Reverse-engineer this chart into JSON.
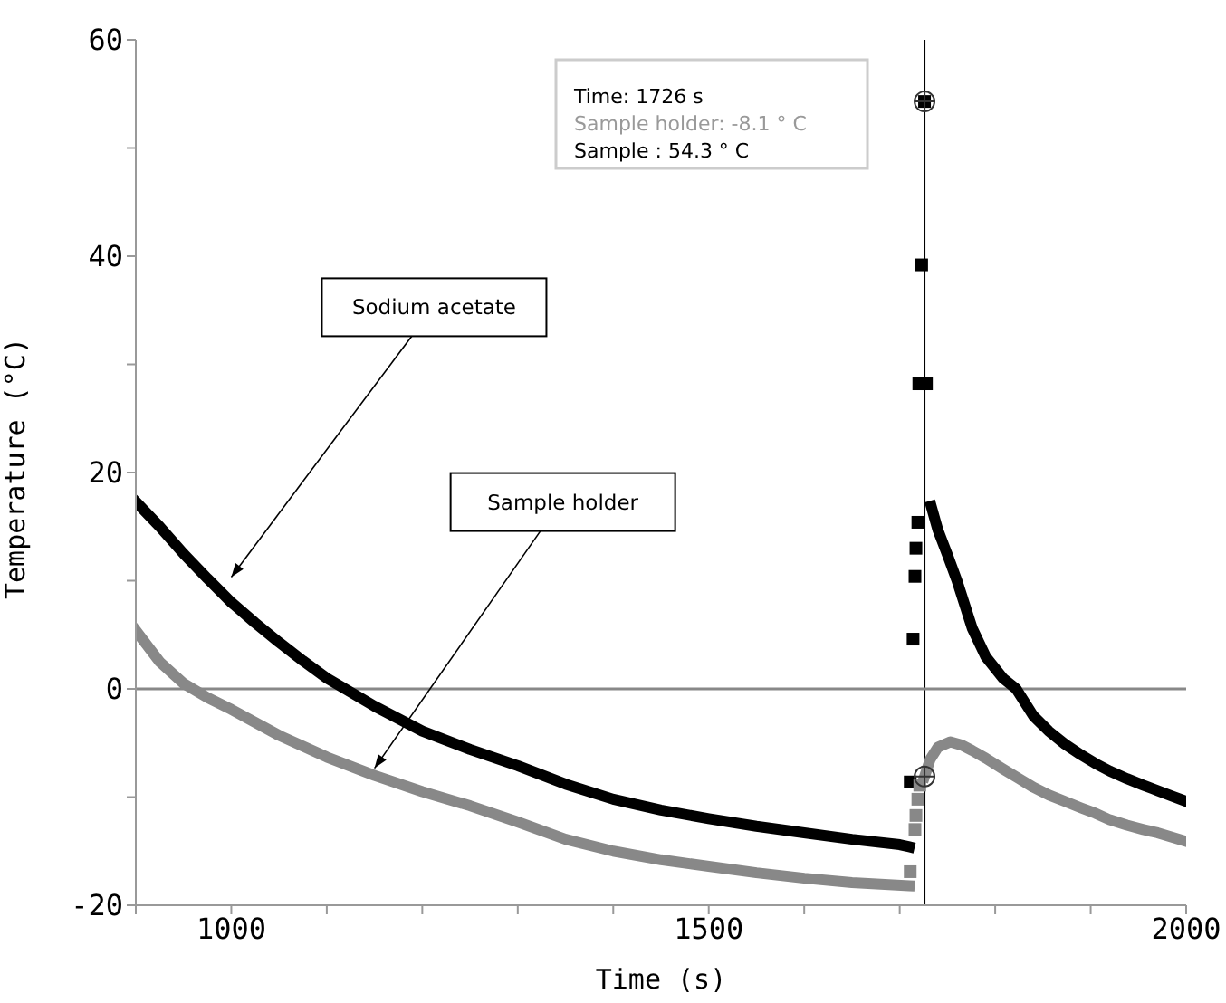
{
  "chart_data": {
    "type": "line",
    "xlabel": "Time (s)",
    "ylabel": "Temperature (°C)",
    "xlim": [
      900,
      2000
    ],
    "xticks": [
      {
        "value": 900,
        "label": null
      },
      1000,
      {
        "value": 1100,
        "label": null
      },
      {
        "value": 1200,
        "label": null
      },
      {
        "value": 1300,
        "label": null
      },
      {
        "value": 1400,
        "label": null
      },
      1500,
      {
        "value": 1600,
        "label": null
      },
      {
        "value": 1700,
        "label": null
      },
      {
        "value": 1800,
        "label": null
      },
      {
        "value": 1900,
        "label": null
      },
      2000
    ],
    "ylim": [
      -20,
      60
    ],
    "yticks": [
      -20,
      {
        "value": -10,
        "label": null
      },
      0,
      {
        "value": 10,
        "label": null
      },
      20,
      {
        "value": 30,
        "label": null
      },
      40,
      {
        "value": 50,
        "label": null
      },
      60
    ],
    "marker": "none",
    "series": [
      {
        "name": "Sodium acetate",
        "color": "#000000",
        "x": [
          900,
          925,
          950,
          975,
          1000,
          1025,
          1050,
          1075,
          1100,
          1150,
          1200,
          1250,
          1300,
          1350,
          1400,
          1450,
          1500,
          1550,
          1600,
          1650,
          1700,
          1710,
          1720,
          1733,
          1740,
          1750,
          1760,
          1776,
          1790,
          1808,
          1822,
          1840,
          1856,
          1873,
          1890,
          1905,
          1920,
          1938,
          1955,
          1970,
          1985,
          2000
        ],
        "values": [
          17.3,
          15.0,
          12.5,
          10.2,
          8.0,
          6.1,
          4.3,
          2.6,
          1.0,
          -1.6,
          -3.9,
          -5.6,
          -7.1,
          -8.8,
          -10.2,
          -11.2,
          -12.0,
          -12.7,
          -13.3,
          -13.9,
          -14.4,
          -14.6,
          null,
          16.9,
          14.7,
          12.4,
          10.0,
          5.6,
          3.0,
          1.0,
          0,
          -2.5,
          -3.9,
          -5.1,
          -6.1,
          -6.9,
          -7.6,
          -8.3,
          -8.9,
          -9.4,
          -9.9,
          -10.4
        ]
      },
      {
        "type": "scatter",
        "marker": "square",
        "color": "#000000",
        "x": [
          1711,
          1714,
          1716,
          1717,
          1719,
          1720,
          1723,
          1726,
          1728
        ],
        "values": [
          -8.6,
          4.6,
          10.4,
          13.0,
          15.4,
          28.2,
          39.2,
          54.3,
          28.2
        ]
      },
      {
        "name": "Sample holder",
        "color": "#888888",
        "x": [
          900,
          925,
          950,
          975,
          1000,
          1050,
          1100,
          1150,
          1200,
          1250,
          1300,
          1350,
          1400,
          1450,
          1500,
          1550,
          1600,
          1650,
          1710,
          1712,
          1726,
          1732,
          1740,
          1753,
          1765,
          1776,
          1790,
          1808,
          1825,
          1840,
          1856,
          1873,
          1890,
          1905,
          1920,
          1938,
          1955,
          1970,
          1985,
          2000
        ],
        "values": [
          5.4,
          2.5,
          0.5,
          -0.8,
          -1.9,
          -4.3,
          -6.3,
          -8.0,
          -9.5,
          -10.8,
          -12.3,
          -13.9,
          -15.0,
          -15.8,
          -16.4,
          -17.0,
          -17.5,
          -17.9,
          -18.2,
          null,
          -8.1,
          -6.5,
          -5.4,
          -4.9,
          -5.2,
          -5.7,
          -6.4,
          -7.4,
          -8.3,
          -9.1,
          -9.8,
          -10.4,
          -11.0,
          -11.5,
          -12.1,
          -12.6,
          -13.0,
          -13.3,
          -13.7,
          -14.1
        ]
      },
      {
        "type": "scatter",
        "marker": "square",
        "color": "#888888",
        "x": [
          1711,
          1716,
          1717,
          1719,
          1721
        ],
        "values": [
          -16.9,
          -13.0,
          -11.7,
          -10.2,
          -8.9
        ]
      }
    ],
    "ref_lines": [
      {
        "axis": "x",
        "value": 1726,
        "color": "#000000"
      },
      {
        "axis": "y",
        "value": 0,
        "color": "#888888"
      }
    ],
    "annotations": [
      "Time: 1726 s",
      "Sample holder: -8.1 ° C",
      "Sample : 54.3 ° C"
    ]
  }
}
